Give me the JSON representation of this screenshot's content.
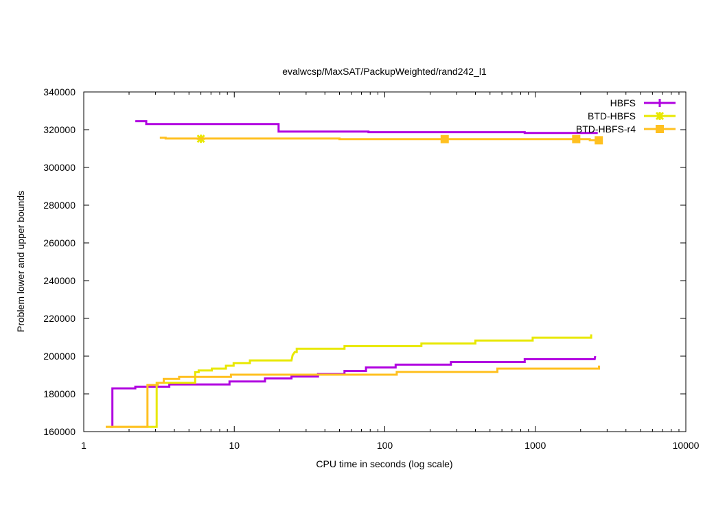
{
  "chart_data": {
    "type": "line",
    "title": "evalwcsp/MaxSAT/PackupWeighted/rand242_l1",
    "xlabel": "CPU time in seconds (log scale)",
    "ylabel": "Problem lower and upper bounds",
    "xscale": "log",
    "xlim": [
      1,
      10000
    ],
    "ylim": [
      160000,
      340000
    ],
    "x_ticks": [
      1,
      10,
      100,
      1000,
      10000
    ],
    "x_tick_labels": [
      "1",
      "10",
      "100",
      "1000",
      "10000"
    ],
    "y_ticks": [
      160000,
      180000,
      200000,
      220000,
      240000,
      260000,
      280000,
      300000,
      320000,
      340000
    ],
    "y_tick_labels": [
      "160000",
      "180000",
      "200000",
      "220000",
      "240000",
      "260000",
      "280000",
      "300000",
      "320000",
      "340000"
    ],
    "grid": false,
    "legend_position": "top-right",
    "series": [
      {
        "name": "HBFS",
        "color": "#b000e0",
        "marker": "plus",
        "upper": [
          [
            2.2,
            324500
          ],
          [
            2.6,
            324500
          ],
          [
            2.6,
            323000
          ],
          [
            19.7,
            323000
          ],
          [
            19.7,
            319000
          ],
          [
            78,
            319000
          ],
          [
            78,
            318700
          ],
          [
            850,
            318700
          ],
          [
            850,
            318300
          ],
          [
            2600,
            318300
          ]
        ],
        "lower": [
          [
            1.5,
            162500
          ],
          [
            1.55,
            162500
          ],
          [
            1.55,
            182900
          ],
          [
            2.2,
            182900
          ],
          [
            2.2,
            183800
          ],
          [
            3.7,
            183800
          ],
          [
            3.7,
            185000
          ],
          [
            9.3,
            185000
          ],
          [
            9.3,
            186600
          ],
          [
            16,
            186600
          ],
          [
            16,
            188200
          ],
          [
            24,
            188200
          ],
          [
            24,
            189200
          ],
          [
            36,
            189200
          ],
          [
            36,
            190500
          ],
          [
            54,
            190500
          ],
          [
            54,
            192200
          ],
          [
            75,
            192200
          ],
          [
            75,
            194000
          ],
          [
            118,
            194000
          ],
          [
            118,
            195500
          ],
          [
            275,
            195500
          ],
          [
            275,
            196900
          ],
          [
            850,
            196900
          ],
          [
            850,
            198400
          ],
          [
            2480,
            198400
          ],
          [
            2500,
            200000
          ]
        ],
        "markers": []
      },
      {
        "name": "BTD-HBFS",
        "color": "#e8e800",
        "marker": "star",
        "upper": [
          [
            6.0,
            315200
          ],
          [
            6.2,
            315200
          ]
        ],
        "lower": [
          [
            1.4,
            162500
          ],
          [
            3.05,
            162500
          ],
          [
            3.05,
            185800
          ],
          [
            4.6,
            185800
          ],
          [
            5.5,
            185800
          ],
          [
            5.5,
            191500
          ],
          [
            5.8,
            191500
          ],
          [
            5.8,
            192400
          ],
          [
            7.1,
            192400
          ],
          [
            7.1,
            193400
          ],
          [
            8.8,
            193400
          ],
          [
            8.8,
            194900
          ],
          [
            9.9,
            194900
          ],
          [
            9.9,
            196300
          ],
          [
            12.7,
            196300
          ],
          [
            12.7,
            197700
          ],
          [
            24.0,
            197700
          ],
          [
            24.4,
            200500
          ],
          [
            25.2,
            202200
          ],
          [
            26.0,
            202200
          ],
          [
            26.0,
            203900
          ],
          [
            54,
            203900
          ],
          [
            54,
            205300
          ],
          [
            175,
            205300
          ],
          [
            175,
            206700
          ],
          [
            400,
            206700
          ],
          [
            400,
            208300
          ],
          [
            960,
            208300
          ],
          [
            960,
            209800
          ],
          [
            2350,
            209800
          ],
          [
            2350,
            211500
          ]
        ],
        "markers": [
          [
            6.0,
            315200
          ]
        ]
      },
      {
        "name": "BTD-HBFS-r4",
        "color": "#ffc020",
        "marker": "square",
        "upper": [
          [
            3.2,
            315700
          ],
          [
            3.5,
            315700
          ],
          [
            3.5,
            315300
          ],
          [
            50,
            315300
          ],
          [
            50,
            315000
          ],
          [
            2300,
            315000
          ],
          [
            2300,
            314400
          ],
          [
            2640,
            314400
          ]
        ],
        "lower": [
          [
            1.4,
            162500
          ],
          [
            2.65,
            162500
          ],
          [
            2.65,
            184700
          ],
          [
            3.1,
            184700
          ],
          [
            3.1,
            185800
          ],
          [
            3.4,
            185800
          ],
          [
            3.4,
            187900
          ],
          [
            4.3,
            187900
          ],
          [
            4.3,
            189000
          ],
          [
            9.5,
            189000
          ],
          [
            9.5,
            190200
          ],
          [
            120,
            190200
          ],
          [
            120,
            191600
          ],
          [
            560,
            191600
          ],
          [
            560,
            193400
          ],
          [
            2650,
            193400
          ],
          [
            2650,
            195000
          ]
        ],
        "markers": [
          [
            250,
            315000
          ],
          [
            1870,
            315000
          ],
          [
            2640,
            314400
          ]
        ]
      }
    ]
  }
}
